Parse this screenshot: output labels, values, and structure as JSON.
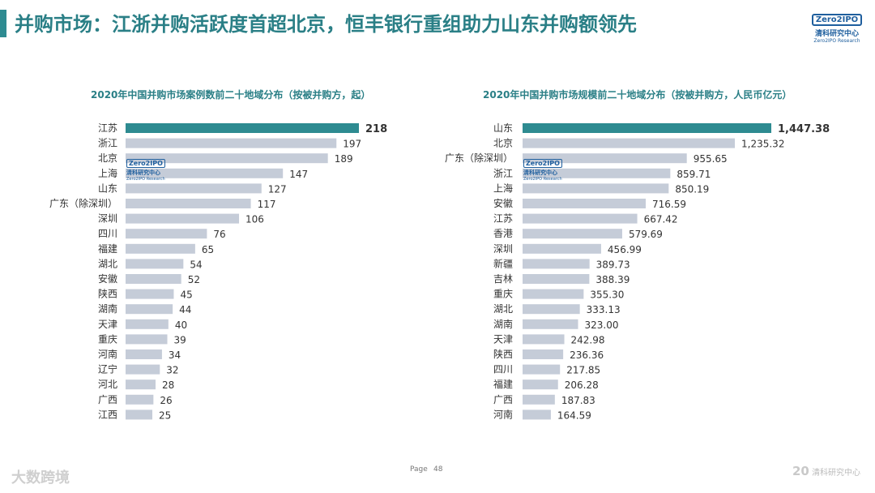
{
  "header": {
    "title": "并购市场：江浙并购活跃度首超北京，恒丰银行重组助力山东并购额领先",
    "logo_text": "Zero2IPO",
    "logo_cn": "清科研究中心",
    "logo_en": "Zero2IPO Research"
  },
  "footer": {
    "page_label": "Page",
    "page_number": "48",
    "left_watermark": "大数跨境",
    "right_watermark_num": "20",
    "right_watermark_text": "清科研究中心"
  },
  "colors": {
    "accent": "#2e8b91",
    "bar": "#c5ccd8",
    "title": "#2a7f86"
  },
  "chart_data": [
    {
      "type": "bar",
      "orientation": "horizontal",
      "title": "2020年中国并购市场案例数前二十地域分布（按被并购方，起）",
      "categories": [
        "江苏",
        "浙江",
        "北京",
        "上海",
        "山东",
        "广东（除深圳）",
        "深圳",
        "四川",
        "福建",
        "湖北",
        "安徽",
        "陕西",
        "湖南",
        "天津",
        "重庆",
        "河南",
        "辽宁",
        "河北",
        "广西",
        "江西"
      ],
      "values": [
        218,
        197,
        189,
        147,
        127,
        117,
        106,
        76,
        65,
        54,
        52,
        45,
        44,
        40,
        39,
        34,
        32,
        28,
        26,
        25
      ],
      "labels": [
        "218",
        "197",
        "189",
        "147",
        "127",
        "117",
        "106",
        "76",
        "65",
        "54",
        "52",
        "45",
        "44",
        "40",
        "39",
        "34",
        "32",
        "28",
        "26",
        "25"
      ],
      "highlight_index": 0,
      "xlim": [
        0,
        218
      ]
    },
    {
      "type": "bar",
      "orientation": "horizontal",
      "title": "2020年中国并购市场规模前二十地域分布（按被并购方，人民币亿元）",
      "categories": [
        "山东",
        "北京",
        "广东（除深圳）",
        "浙江",
        "上海",
        "安徽",
        "江苏",
        "香港",
        "深圳",
        "新疆",
        "吉林",
        "重庆",
        "湖北",
        "湖南",
        "天津",
        "陕西",
        "四川",
        "福建",
        "广西",
        "河南"
      ],
      "values": [
        1447.38,
        1235.32,
        955.65,
        859.71,
        850.19,
        716.59,
        667.42,
        579.69,
        456.99,
        389.73,
        388.39,
        355.3,
        333.13,
        323.0,
        242.98,
        236.36,
        217.85,
        206.28,
        187.83,
        164.59
      ],
      "labels": [
        "1,447.38",
        "1,235.32",
        "955.65",
        "859.71",
        "850.19",
        "716.59",
        "667.42",
        "579.69",
        "456.99",
        "389.73",
        "388.39",
        "355.30",
        "333.13",
        "323.00",
        "242.98",
        "236.36",
        "217.85",
        "206.28",
        "187.83",
        "164.59"
      ],
      "highlight_index": 0,
      "xlim": [
        0,
        1447.38
      ]
    }
  ]
}
